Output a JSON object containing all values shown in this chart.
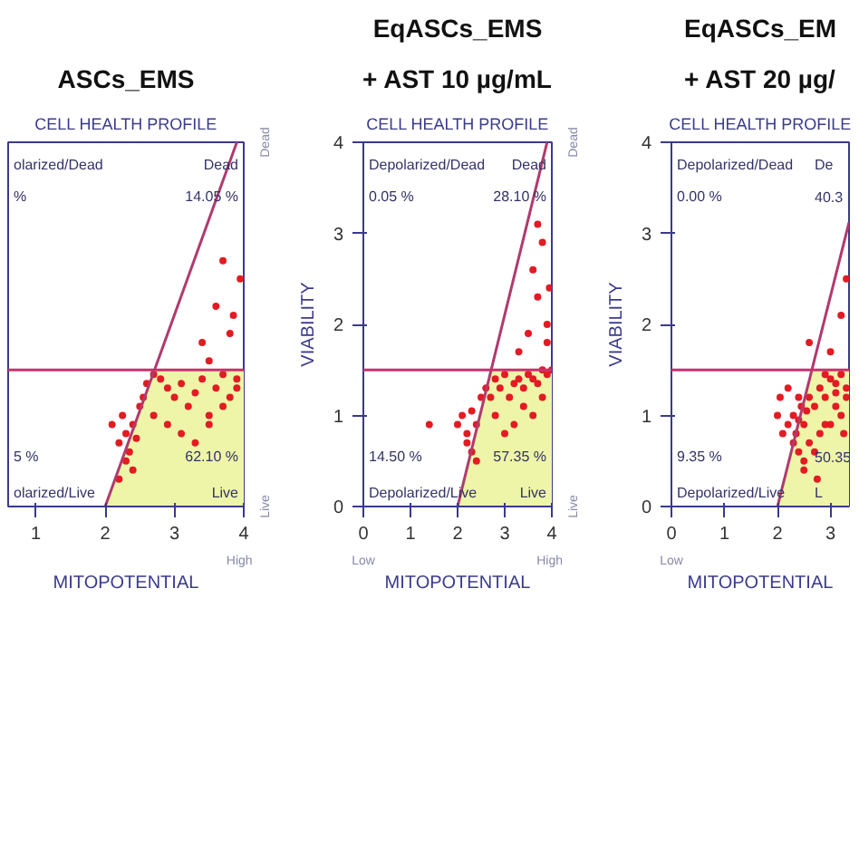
{
  "chart_data": [
    {
      "type": "scatter",
      "title": "ASCs_EMS",
      "xlabel": "MITOPOTENTIAL",
      "xlim": [
        0.6,
        4
      ],
      "ylim": [
        0,
        4
      ],
      "xticks": [
        1,
        2,
        3,
        4
      ],
      "yticks": [
        0,
        1,
        2,
        3,
        4
      ],
      "tick_labels": "x",
      "series": [
        {
          "type": "area",
          "color": "#eef5a8",
          "x": [
            2,
            2.71,
            4
          ],
          "values": [
            0,
            1.5,
            1.5
          ]
        },
        {
          "marker": "circle",
          "color": "#e31b23",
          "x": [
            2.1,
            2.2,
            2.25,
            2.3,
            2.35,
            2.4,
            2.45,
            2.5,
            2.3,
            2.4,
            2.2,
            2.55,
            2.6,
            2.7,
            2.8,
            2.9,
            3.0,
            3.1,
            3.2,
            3.3,
            3.4,
            3.5,
            3.6,
            3.7,
            3.8,
            3.9,
            2.7,
            2.9,
            3.1,
            3.3,
            3.5,
            3.7,
            3.9,
            3.4,
            3.6,
            3.8,
            3.95,
            3.7,
            3.85,
            3.5
          ],
          "values": [
            0.9,
            0.7,
            1.0,
            0.8,
            0.6,
            0.9,
            0.75,
            1.1,
            0.5,
            0.4,
            0.3,
            1.2,
            1.35,
            1.45,
            1.4,
            1.3,
            1.2,
            1.35,
            1.1,
            1.25,
            1.4,
            1.0,
            1.3,
            1.45,
            1.2,
            1.4,
            1.0,
            0.9,
            0.8,
            0.7,
            0.9,
            1.1,
            1.3,
            1.8,
            2.2,
            1.9,
            2.5,
            2.7,
            2.1,
            1.6
          ]
        },
        {
          "type": "line",
          "color": "#b03a6e",
          "x": [
            2,
            3.9
          ],
          "values": [
            0,
            4
          ]
        }
      ],
      "ref_lines": [
        {
          "axis": "y",
          "value": 1.5,
          "color": "#c8326e"
        }
      ],
      "annotations": [
        "CELL HEALTH PROFILE",
        "High",
        "olarized/Dead",
        "%",
        "Dead",
        "14.05 %",
        "5 %",
        "olarized/Live",
        "62.10 %",
        "Live"
      ]
    },
    {
      "type": "scatter",
      "title": "EqASCs_EMS",
      "subtitle": "+ AST 10 µg/mL",
      "xlabel": "MITOPOTENTIAL",
      "ylabel": "VIABILITY",
      "xlim": [
        0,
        4
      ],
      "ylim": [
        0,
        4
      ],
      "xticks": [
        0,
        1,
        2,
        3,
        4
      ],
      "yticks": [
        0,
        1,
        2,
        3,
        4
      ],
      "series": [
        {
          "type": "area",
          "color": "#eef5a8",
          "x": [
            2,
            2.71,
            4
          ],
          "values": [
            0,
            1.5,
            1.5
          ]
        },
        {
          "marker": "circle",
          "color": "#e31b23",
          "x": [
            2.0,
            2.1,
            2.2,
            2.3,
            2.4,
            2.5,
            2.3,
            2.4,
            2.2,
            2.6,
            2.7,
            2.8,
            2.9,
            3.0,
            3.1,
            3.2,
            3.3,
            3.4,
            3.5,
            3.6,
            3.7,
            3.8,
            3.9,
            4.0,
            2.8,
            3.0,
            3.2,
            3.4,
            3.6,
            3.8,
            3.5,
            3.7,
            3.9,
            3.6,
            3.8,
            3.95,
            3.7,
            3.9,
            3.3,
            1.4
          ],
          "values": [
            0.9,
            1.0,
            0.8,
            1.05,
            0.9,
            1.2,
            0.6,
            0.5,
            0.7,
            1.3,
            1.2,
            1.4,
            1.3,
            1.45,
            1.2,
            1.35,
            1.4,
            1.3,
            1.45,
            1.4,
            1.35,
            1.5,
            1.45,
            1.5,
            1.0,
            0.8,
            0.9,
            1.1,
            1.0,
            1.2,
            1.9,
            2.3,
            1.8,
            2.6,
            2.9,
            2.4,
            3.1,
            2.0,
            1.7,
            0.9
          ]
        },
        {
          "type": "line",
          "color": "#b03a6e",
          "x": [
            2,
            3.9
          ],
          "values": [
            0,
            4
          ]
        }
      ],
      "ref_lines": [
        {
          "axis": "y",
          "value": 1.5,
          "color": "#c8326e"
        }
      ],
      "annotations": [
        "CELL HEALTH PROFILE",
        "Low",
        "High",
        "Dead",
        "Live",
        "Depolarized/Dead",
        "0.05 %",
        "Dead",
        "28.10 %",
        "14.50 %",
        "Depolarized/Live",
        "57.35 %",
        "Live"
      ]
    },
    {
      "type": "scatter",
      "title": "EqASCs_EM",
      "subtitle": "+ AST 20 µg/",
      "xlabel": "MITOPOTENTIAL",
      "ylabel": "VIABILITY",
      "xlim": [
        0,
        3.35
      ],
      "ylim": [
        0,
        4
      ],
      "xticks": [
        0,
        1,
        2,
        3
      ],
      "yticks": [
        0,
        1,
        2,
        3,
        4
      ],
      "series": [
        {
          "type": "area",
          "color": "#eef5a8",
          "x": [
            2,
            2.65,
            3.35
          ],
          "values": [
            0,
            1.5,
            1.5
          ]
        },
        {
          "marker": "circle",
          "color": "#e31b23",
          "x": [
            2.2,
            2.3,
            2.35,
            2.4,
            2.45,
            2.5,
            2.55,
            2.6,
            2.7,
            2.8,
            2.9,
            3.0,
            3.1,
            3.2,
            3.3,
            2.4,
            2.5,
            2.6,
            2.8,
            3.0,
            3.2,
            2.3,
            2.5,
            2.7,
            2.9,
            3.1,
            3.3,
            2.0,
            2.1,
            3.0,
            3.2,
            3.3,
            2.6,
            2.2,
            2.4,
            2.9,
            3.1,
            3.25,
            2.75,
            2.05
          ],
          "values": [
            0.9,
            1.0,
            0.8,
            0.95,
            1.1,
            0.9,
            1.05,
            1.2,
            1.1,
            1.3,
            1.2,
            1.4,
            1.35,
            1.45,
            1.3,
            0.6,
            0.5,
            0.7,
            0.8,
            0.9,
            1.0,
            0.7,
            0.4,
            0.6,
            0.9,
            1.1,
            1.2,
            1.0,
            0.8,
            1.7,
            2.1,
            2.5,
            1.8,
            1.3,
            1.2,
            1.45,
            1.25,
            0.8,
            0.3,
            1.2
          ]
        },
        {
          "type": "line",
          "color": "#b03a6e",
          "x": [
            2,
            3.35
          ],
          "values": [
            0,
            3.12
          ]
        }
      ],
      "ref_lines": [
        {
          "axis": "y",
          "value": 1.5,
          "color": "#c8326e"
        }
      ],
      "annotations": [
        "CELL HEALTH PROFILE",
        "Low",
        "Dead",
        "Live",
        "Depolarized/Dead",
        "0.00 %",
        "De",
        "40.3",
        "9.35 %",
        "Depolarized/Live",
        "50.35",
        "L"
      ]
    }
  ]
}
